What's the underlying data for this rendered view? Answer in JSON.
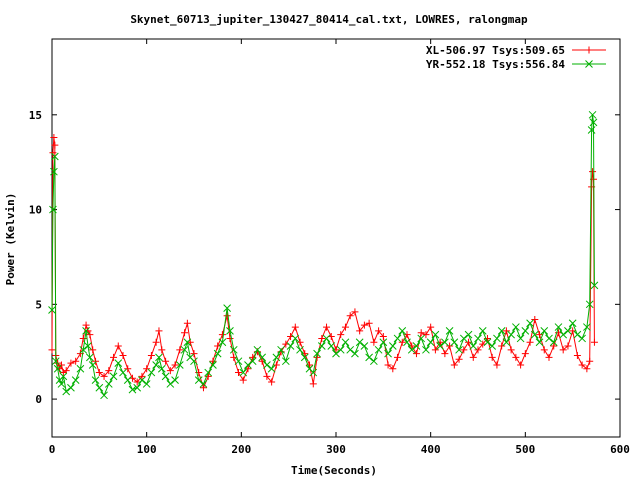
{
  "chart_data": {
    "type": "scatter",
    "title": "Skynet_60713_jupiter_130427_80414_cal.txt, LOWRES, ralongmap",
    "xlabel": "Time(Seconds)",
    "ylabel": "Power (Kelvin)",
    "xlim": [
      0,
      600
    ],
    "ylim": [
      -2,
      19
    ],
    "xticks": [
      0,
      100,
      200,
      300,
      400,
      500,
      600
    ],
    "yticks": [
      0,
      5,
      10,
      15
    ],
    "grid": false,
    "legend_position": "top-right",
    "series": [
      {
        "name": "XL-506.97 Tsys:509.65",
        "color": "#ff0000",
        "marker": "plus",
        "points": [
          [
            0,
            2.6
          ],
          [
            1,
            13.0
          ],
          [
            2,
            13.8
          ],
          [
            3,
            13.4
          ],
          [
            4,
            2.3
          ],
          [
            6,
            1.9
          ],
          [
            8,
            1.6
          ],
          [
            10,
            1.8
          ],
          [
            12,
            1.4
          ],
          [
            15,
            1.5
          ],
          [
            20,
            1.9
          ],
          [
            25,
            2.0
          ],
          [
            30,
            2.4
          ],
          [
            33,
            3.2
          ],
          [
            36,
            3.9
          ],
          [
            38,
            3.6
          ],
          [
            40,
            3.4
          ],
          [
            43,
            2.6
          ],
          [
            46,
            2.0
          ],
          [
            50,
            1.4
          ],
          [
            55,
            1.2
          ],
          [
            60,
            1.5
          ],
          [
            65,
            2.2
          ],
          [
            70,
            2.8
          ],
          [
            75,
            2.3
          ],
          [
            80,
            1.6
          ],
          [
            85,
            1.1
          ],
          [
            90,
            0.9
          ],
          [
            95,
            1.2
          ],
          [
            100,
            1.6
          ],
          [
            105,
            2.3
          ],
          [
            110,
            3.0
          ],
          [
            113,
            3.6
          ],
          [
            116,
            2.6
          ],
          [
            120,
            2.0
          ],
          [
            125,
            1.5
          ],
          [
            130,
            1.8
          ],
          [
            135,
            2.6
          ],
          [
            140,
            3.5
          ],
          [
            143,
            4.0
          ],
          [
            146,
            3.0
          ],
          [
            150,
            2.4
          ],
          [
            155,
            1.4
          ],
          [
            160,
            0.6
          ],
          [
            165,
            1.2
          ],
          [
            170,
            2.0
          ],
          [
            175,
            2.8
          ],
          [
            180,
            3.4
          ],
          [
            185,
            4.4
          ],
          [
            188,
            3.2
          ],
          [
            192,
            2.2
          ],
          [
            197,
            1.4
          ],
          [
            202,
            1.0
          ],
          [
            207,
            1.6
          ],
          [
            212,
            2.2
          ],
          [
            217,
            2.5
          ],
          [
            222,
            2.0
          ],
          [
            227,
            1.2
          ],
          [
            232,
            0.9
          ],
          [
            237,
            1.8
          ],
          [
            242,
            2.5
          ],
          [
            247,
            2.9
          ],
          [
            252,
            3.3
          ],
          [
            257,
            3.8
          ],
          [
            262,
            3.0
          ],
          [
            267,
            2.4
          ],
          [
            272,
            1.8
          ],
          [
            276,
            0.8
          ],
          [
            280,
            2.2
          ],
          [
            285,
            3.2
          ],
          [
            290,
            3.8
          ],
          [
            295,
            3.3
          ],
          [
            300,
            2.6
          ],
          [
            305,
            3.4
          ],
          [
            310,
            3.8
          ],
          [
            315,
            4.4
          ],
          [
            320,
            4.6
          ],
          [
            325,
            3.6
          ],
          [
            330,
            3.9
          ],
          [
            335,
            4.0
          ],
          [
            340,
            3.0
          ],
          [
            345,
            3.6
          ],
          [
            350,
            3.3
          ],
          [
            355,
            1.8
          ],
          [
            360,
            1.6
          ],
          [
            365,
            2.2
          ],
          [
            370,
            3.0
          ],
          [
            375,
            3.4
          ],
          [
            380,
            2.8
          ],
          [
            385,
            2.4
          ],
          [
            390,
            3.5
          ],
          [
            395,
            3.4
          ],
          [
            400,
            3.8
          ],
          [
            405,
            2.6
          ],
          [
            410,
            3.0
          ],
          [
            415,
            2.4
          ],
          [
            420,
            2.8
          ],
          [
            425,
            1.8
          ],
          [
            430,
            2.1
          ],
          [
            435,
            2.6
          ],
          [
            440,
            3.0
          ],
          [
            445,
            2.2
          ],
          [
            450,
            2.6
          ],
          [
            455,
            2.9
          ],
          [
            460,
            3.2
          ],
          [
            465,
            2.2
          ],
          [
            470,
            1.8
          ],
          [
            475,
            2.8
          ],
          [
            480,
            3.6
          ],
          [
            485,
            2.6
          ],
          [
            490,
            2.2
          ],
          [
            495,
            1.8
          ],
          [
            500,
            2.4
          ],
          [
            505,
            3.0
          ],
          [
            510,
            4.2
          ],
          [
            515,
            3.4
          ],
          [
            520,
            2.6
          ],
          [
            525,
            2.2
          ],
          [
            530,
            2.8
          ],
          [
            535,
            3.5
          ],
          [
            540,
            2.6
          ],
          [
            545,
            2.8
          ],
          [
            550,
            3.6
          ],
          [
            555,
            2.3
          ],
          [
            560,
            1.8
          ],
          [
            565,
            1.6
          ],
          [
            568,
            2.0
          ],
          [
            570,
            11.2
          ],
          [
            571,
            12.0
          ],
          [
            572,
            11.6
          ],
          [
            573,
            3.0
          ]
        ]
      },
      {
        "name": "YR-552.18 Tsys:556.84",
        "color": "#00b000",
        "marker": "x",
        "points": [
          [
            0,
            4.7
          ],
          [
            1,
            10.0
          ],
          [
            2,
            12.0
          ],
          [
            3,
            12.8
          ],
          [
            4,
            2.0
          ],
          [
            6,
            1.6
          ],
          [
            8,
            1.0
          ],
          [
            10,
            0.8
          ],
          [
            12,
            1.2
          ],
          [
            15,
            0.4
          ],
          [
            20,
            0.6
          ],
          [
            25,
            1.0
          ],
          [
            30,
            1.6
          ],
          [
            33,
            2.6
          ],
          [
            36,
            3.6
          ],
          [
            38,
            2.8
          ],
          [
            40,
            2.2
          ],
          [
            43,
            1.8
          ],
          [
            46,
            1.0
          ],
          [
            50,
            0.6
          ],
          [
            55,
            0.2
          ],
          [
            60,
            0.8
          ],
          [
            65,
            1.2
          ],
          [
            70,
            1.9
          ],
          [
            75,
            1.4
          ],
          [
            80,
            1.0
          ],
          [
            85,
            0.5
          ],
          [
            90,
            0.6
          ],
          [
            95,
            1.0
          ],
          [
            100,
            0.8
          ],
          [
            105,
            1.4
          ],
          [
            110,
            1.8
          ],
          [
            113,
            2.2
          ],
          [
            116,
            1.6
          ],
          [
            120,
            1.2
          ],
          [
            125,
            0.8
          ],
          [
            130,
            1.0
          ],
          [
            135,
            1.8
          ],
          [
            140,
            2.6
          ],
          [
            143,
            3.0
          ],
          [
            146,
            2.2
          ],
          [
            150,
            2.0
          ],
          [
            155,
            1.0
          ],
          [
            160,
            0.8
          ],
          [
            165,
            1.4
          ],
          [
            170,
            1.8
          ],
          [
            175,
            2.4
          ],
          [
            180,
            3.0
          ],
          [
            185,
            4.8
          ],
          [
            188,
            3.6
          ],
          [
            192,
            2.6
          ],
          [
            197,
            2.0
          ],
          [
            202,
            1.4
          ],
          [
            207,
            1.8
          ],
          [
            212,
            2.0
          ],
          [
            217,
            2.6
          ],
          [
            222,
            2.2
          ],
          [
            227,
            1.8
          ],
          [
            232,
            1.6
          ],
          [
            237,
            2.2
          ],
          [
            242,
            2.6
          ],
          [
            247,
            2.0
          ],
          [
            252,
            2.8
          ],
          [
            257,
            3.2
          ],
          [
            262,
            2.6
          ],
          [
            267,
            2.2
          ],
          [
            272,
            1.6
          ],
          [
            276,
            1.4
          ],
          [
            280,
            2.4
          ],
          [
            285,
            2.8
          ],
          [
            290,
            3.2
          ],
          [
            295,
            2.8
          ],
          [
            300,
            2.4
          ],
          [
            305,
            2.6
          ],
          [
            310,
            3.0
          ],
          [
            315,
            2.6
          ],
          [
            320,
            2.4
          ],
          [
            325,
            3.0
          ],
          [
            330,
            2.8
          ],
          [
            335,
            2.2
          ],
          [
            340,
            2.0
          ],
          [
            345,
            2.6
          ],
          [
            350,
            3.0
          ],
          [
            355,
            2.4
          ],
          [
            360,
            2.8
          ],
          [
            365,
            3.2
          ],
          [
            370,
            3.6
          ],
          [
            375,
            3.0
          ],
          [
            380,
            2.6
          ],
          [
            385,
            2.8
          ],
          [
            390,
            3.2
          ],
          [
            395,
            2.6
          ],
          [
            400,
            3.0
          ],
          [
            405,
            3.4
          ],
          [
            410,
            2.8
          ],
          [
            415,
            3.0
          ],
          [
            420,
            3.6
          ],
          [
            425,
            3.0
          ],
          [
            430,
            2.6
          ],
          [
            435,
            3.2
          ],
          [
            440,
            3.4
          ],
          [
            445,
            2.8
          ],
          [
            450,
            3.2
          ],
          [
            455,
            3.6
          ],
          [
            460,
            3.0
          ],
          [
            465,
            2.8
          ],
          [
            470,
            3.2
          ],
          [
            475,
            3.6
          ],
          [
            480,
            3.0
          ],
          [
            485,
            3.4
          ],
          [
            490,
            3.8
          ],
          [
            495,
            3.2
          ],
          [
            500,
            3.6
          ],
          [
            505,
            4.0
          ],
          [
            510,
            3.4
          ],
          [
            515,
            3.0
          ],
          [
            520,
            3.6
          ],
          [
            525,
            3.2
          ],
          [
            530,
            3.0
          ],
          [
            535,
            3.8
          ],
          [
            540,
            3.4
          ],
          [
            545,
            3.6
          ],
          [
            550,
            4.0
          ],
          [
            555,
            3.4
          ],
          [
            560,
            3.2
          ],
          [
            565,
            3.8
          ],
          [
            568,
            5.0
          ],
          [
            570,
            14.2
          ],
          [
            571,
            15.0
          ],
          [
            572,
            14.6
          ],
          [
            573,
            6.0
          ]
        ]
      }
    ]
  }
}
